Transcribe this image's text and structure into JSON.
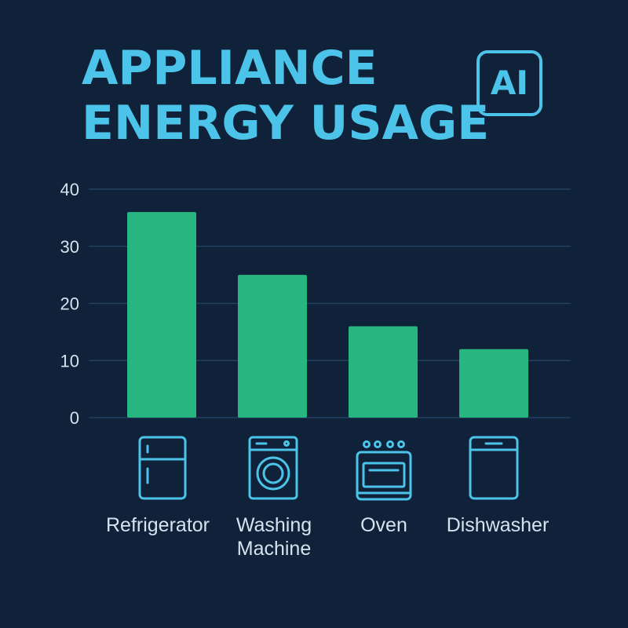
{
  "header": {
    "title_line1": "APPLIANCE",
    "title_line2": "ENERGY USAGE",
    "badge": "AI"
  },
  "colors": {
    "background": "#0f223a",
    "title": "#4cc3e8",
    "bar": "#27b680",
    "icon": "#4cc3e8",
    "text": "#d6e2ee"
  },
  "icons": [
    "refrigerator-icon",
    "washing-machine-icon",
    "oven-icon",
    "dishwasher-icon"
  ],
  "chart_data": {
    "type": "bar",
    "title": "APPLIANCE ENERGY USAGE",
    "categories": [
      "Refrigerator",
      "Washing\nMachine",
      "Oven",
      "Dishwasher"
    ],
    "values": [
      36,
      25,
      16,
      12
    ],
    "yticks": [
      0,
      10,
      20,
      30,
      40
    ],
    "ylim": [
      0,
      40
    ],
    "xlabel": "",
    "ylabel": "",
    "grid": true,
    "legend": "none"
  }
}
